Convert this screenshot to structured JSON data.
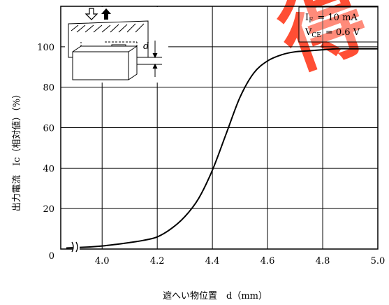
{
  "watermark_text": "得",
  "chart_data": {
    "type": "line",
    "xlabel": "遮へい物位置　d（mm）",
    "ylabel": "出力電流　Ic（相対値）（%）",
    "xlim": [
      3.85,
      5.0
    ],
    "ylim": [
      0,
      120
    ],
    "x_ticks": [
      "4.0",
      "4.2",
      "4.4",
      "4.6",
      "4.8",
      "5.0"
    ],
    "x_tick_values": [
      4.0,
      4.2,
      4.4,
      4.6,
      4.8,
      5.0
    ],
    "y_ticks": [
      "0",
      "20",
      "40",
      "60",
      "80",
      "100"
    ],
    "y_tick_values": [
      0,
      20,
      40,
      60,
      80,
      100
    ],
    "x_axis_break": true,
    "grid": true,
    "conditions": {
      "if_label": "I",
      "if_sub": "F",
      "if_value": "= 10 mA",
      "vce_label": "V",
      "vce_sub": "CE",
      "vce_value": "= 0.6 V"
    },
    "diagram_label": "d",
    "series": [
      {
        "x": [
          3.87,
          3.95,
          4.0,
          4.05,
          4.1,
          4.15,
          4.2,
          4.25,
          4.3,
          4.35,
          4.4,
          4.45,
          4.5,
          4.55,
          4.6,
          4.65,
          4.7,
          4.75,
          4.8,
          4.85,
          4.9,
          5.0
        ],
        "y": [
          0.5,
          1,
          1.5,
          2.3,
          3.2,
          4.3,
          6,
          10,
          16,
          25,
          39,
          57,
          75,
          87,
          93,
          96,
          97.5,
          98,
          98.5,
          99,
          99,
          99
        ]
      }
    ],
    "colors": {
      "line": "#000000",
      "grid": "#000000",
      "watermark": "#ff3b1f"
    }
  }
}
